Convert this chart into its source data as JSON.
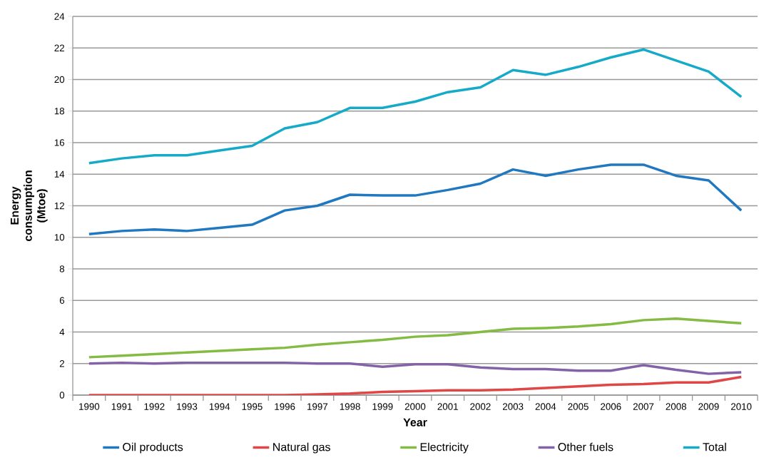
{
  "chart_data": {
    "type": "line",
    "xlabel": "Year",
    "ylabel": "Energy consumption (Mtoe)",
    "categories": [
      "1990",
      "1991",
      "1992",
      "1993",
      "1994",
      "1995",
      "1996",
      "1997",
      "1998",
      "1999",
      "2000",
      "2001",
      "2002",
      "2003",
      "2004",
      "2005",
      "2006",
      "2007",
      "2008",
      "2009",
      "2010"
    ],
    "series": [
      {
        "name": "Oil products",
        "color": "#1f78c0",
        "values": [
          10.2,
          10.4,
          10.5,
          10.4,
          10.6,
          10.8,
          11.7,
          12.0,
          12.7,
          12.65,
          12.65,
          13.0,
          13.4,
          14.3,
          13.9,
          14.3,
          14.6,
          14.6,
          13.9,
          13.6,
          11.7
        ]
      },
      {
        "name": "Natural gas",
        "color": "#e04646",
        "values": [
          0,
          0,
          0,
          0,
          0,
          0,
          0,
          0.05,
          0.1,
          0.2,
          0.25,
          0.3,
          0.3,
          0.35,
          0.45,
          0.55,
          0.65,
          0.7,
          0.8,
          0.8,
          1.15
        ]
      },
      {
        "name": "Electricity",
        "color": "#84bb42",
        "values": [
          2.4,
          2.5,
          2.6,
          2.7,
          2.8,
          2.9,
          3.0,
          3.2,
          3.35,
          3.5,
          3.7,
          3.8,
          4.0,
          4.2,
          4.25,
          4.35,
          4.5,
          4.75,
          4.85,
          4.7,
          4.55
        ]
      },
      {
        "name": "Other fuels",
        "color": "#8462a8",
        "values": [
          2.0,
          2.05,
          2.0,
          2.05,
          2.05,
          2.05,
          2.05,
          2.0,
          2.0,
          1.8,
          1.95,
          1.95,
          1.75,
          1.65,
          1.65,
          1.55,
          1.55,
          1.9,
          1.6,
          1.35,
          1.45
        ]
      },
      {
        "name": "Total",
        "color": "#14aac8",
        "values": [
          14.7,
          15.0,
          15.2,
          15.2,
          15.5,
          15.8,
          16.9,
          17.3,
          18.2,
          18.2,
          18.6,
          19.2,
          19.5,
          20.6,
          20.3,
          20.8,
          21.4,
          21.9,
          21.2,
          20.5,
          18.9
        ]
      }
    ],
    "ylim": [
      0,
      24
    ],
    "yticks": [
      0,
      2,
      4,
      6,
      8,
      10,
      12,
      14,
      16,
      18,
      20,
      22,
      24
    ],
    "grid": "y",
    "legend": "bottom",
    "marker": "none",
    "line_style": "solid"
  }
}
